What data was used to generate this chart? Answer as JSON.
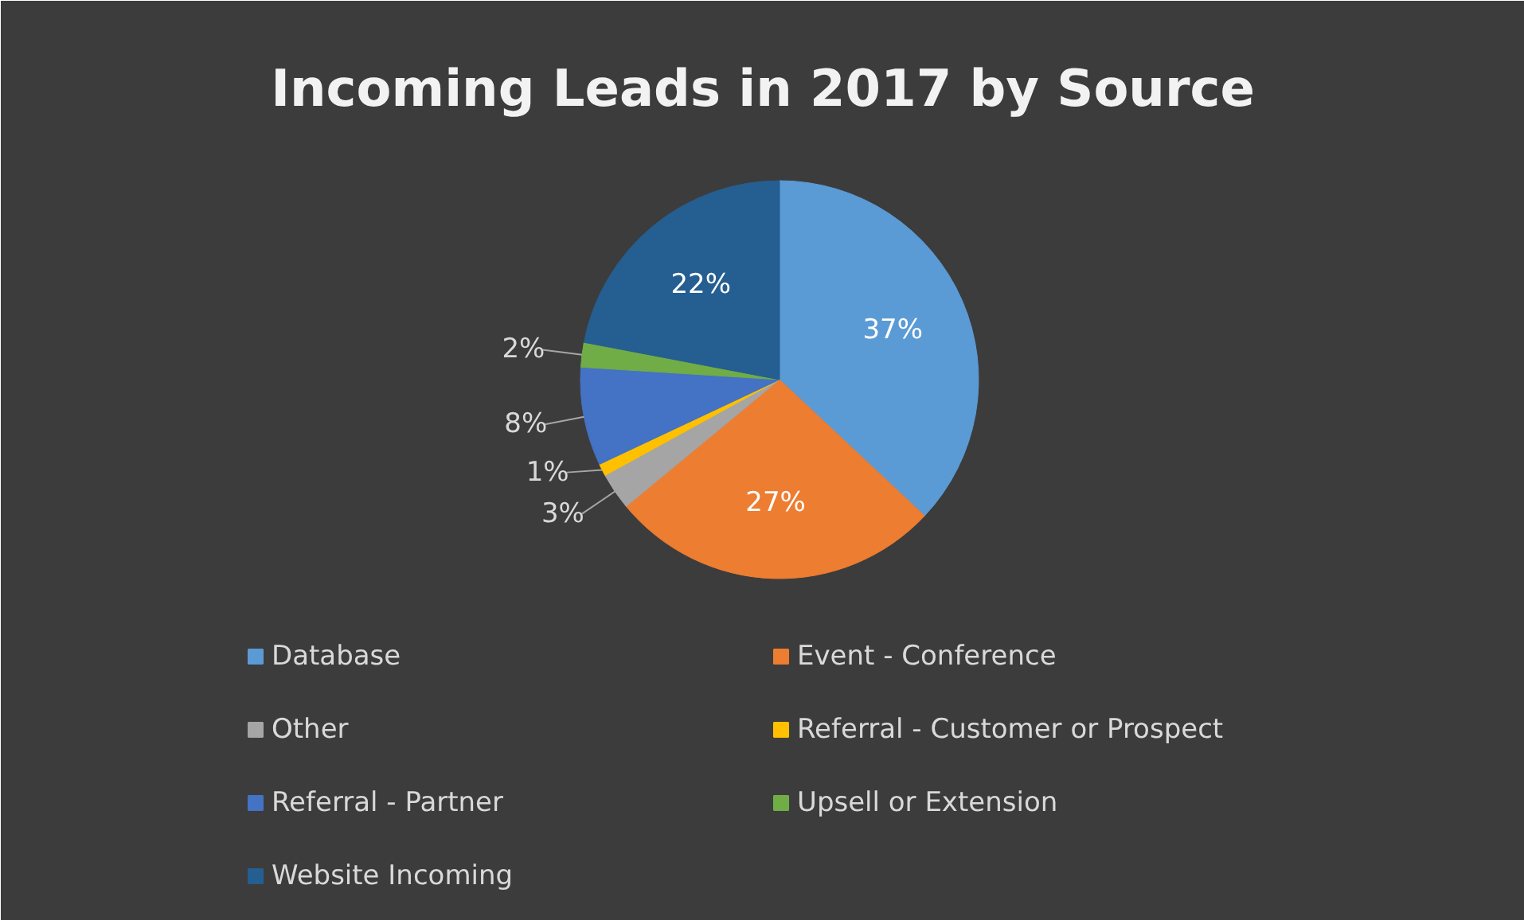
{
  "chart_data": {
    "type": "pie",
    "title": "Incoming Leads in 2017 by Source",
    "categories": [
      "Database",
      "Event - Conference",
      "Other",
      "Referral - Customer or Prospect",
      "Referral - Partner",
      "Upsell or Extension",
      "Website Incoming"
    ],
    "values": [
      37,
      27,
      3,
      1,
      8,
      2,
      22
    ],
    "colors": [
      "#5b9bd5",
      "#ed7d31",
      "#a5a5a5",
      "#ffc000",
      "#4472c4",
      "#70ad47",
      "#255e91"
    ],
    "value_labels": [
      "37%",
      "27%",
      "3%",
      "1%",
      "8%",
      "2%",
      "22%"
    ],
    "legend": "bottom"
  }
}
